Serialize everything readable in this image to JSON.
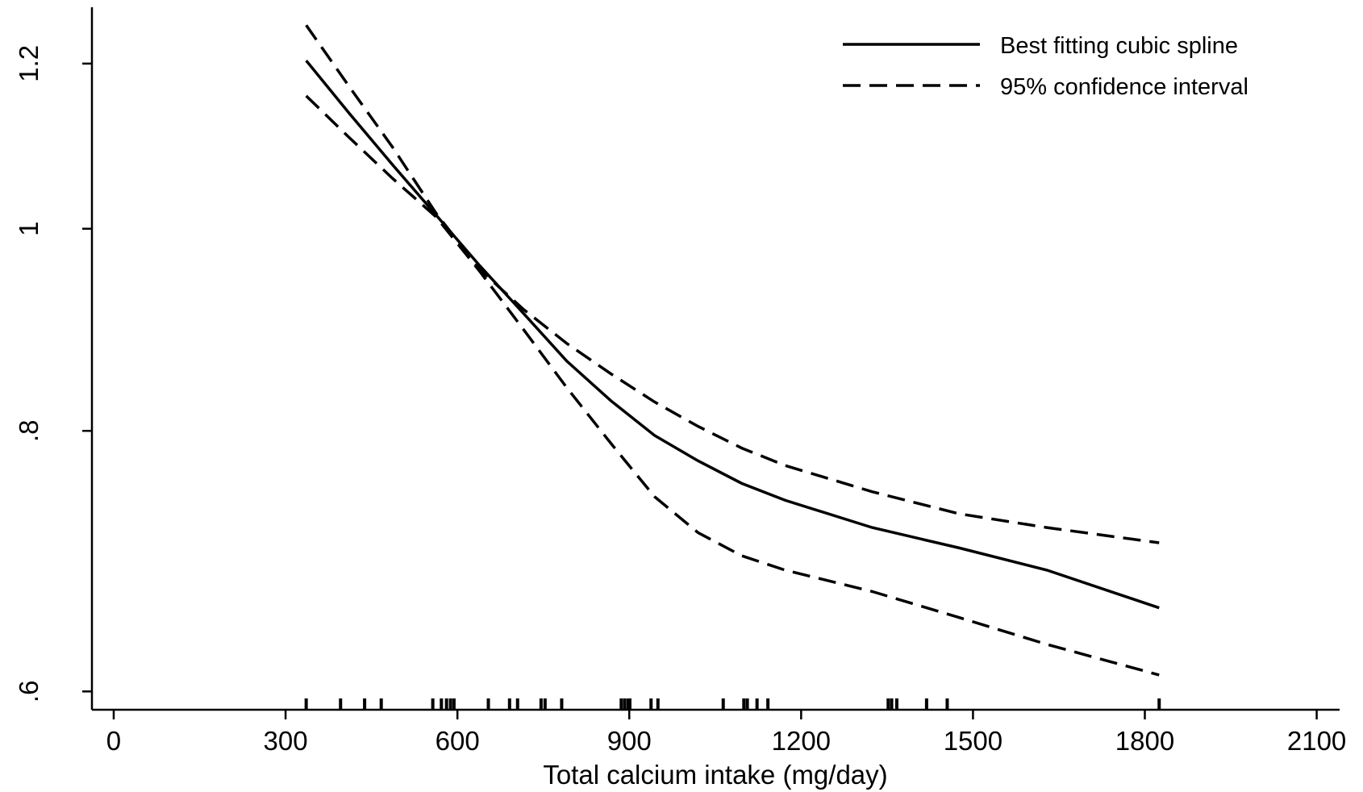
{
  "chart_data": {
    "type": "line",
    "xlabel": "Total calcium intake (mg/day)",
    "xlim": [
      -38,
      2140
    ],
    "xticks": [
      0,
      300,
      600,
      900,
      1200,
      1500,
      1800,
      2100
    ],
    "ylim": [
      0.588,
      1.277
    ],
    "ylog": true,
    "yticks": [
      {
        "value": 0.6,
        "label": ".6"
      },
      {
        "value": 0.8,
        "label": ".8"
      },
      1,
      1.2
    ],
    "x": [
      336,
      411,
      487,
      563,
      639,
      715,
      791,
      868,
      944,
      1020,
      1096,
      1172,
      1324,
      1476,
      1629,
      1825
    ],
    "series": [
      {
        "name": "Best fitting cubic spline",
        "color": "#000000",
        "dashed": false,
        "values": [
          1.204,
          1.136,
          1.073,
          1.015,
          0.96,
          0.911,
          0.864,
          0.827,
          0.796,
          0.774,
          0.755,
          0.741,
          0.719,
          0.703,
          0.686,
          0.658
        ]
      },
      {
        "name": "95% confidence interval",
        "color": "#000000",
        "dashed": true,
        "values": [
          1.252,
          1.17,
          1.094,
          1.017,
          0.956,
          0.915,
          0.881,
          0.852,
          0.826,
          0.804,
          0.785,
          0.77,
          0.748,
          0.73,
          0.719,
          0.707
        ]
      },
      {
        "color": "#000000",
        "dashed": true,
        "values": [
          1.158,
          1.106,
          1.057,
          1.013,
          0.954,
          0.895,
          0.839,
          0.789,
          0.744,
          0.715,
          0.697,
          0.686,
          0.67,
          0.651,
          0.632,
          0.611
        ]
      }
    ],
    "rug": [
      336,
      396,
      438,
      467,
      557,
      572,
      581,
      588,
      594,
      654,
      691,
      705,
      746,
      753,
      782,
      886,
      892,
      898,
      901,
      938,
      950,
      1064,
      1100,
      1106,
      1123,
      1142,
      1352,
      1358,
      1367,
      1419,
      1455,
      1825
    ],
    "legend": "top-right"
  }
}
